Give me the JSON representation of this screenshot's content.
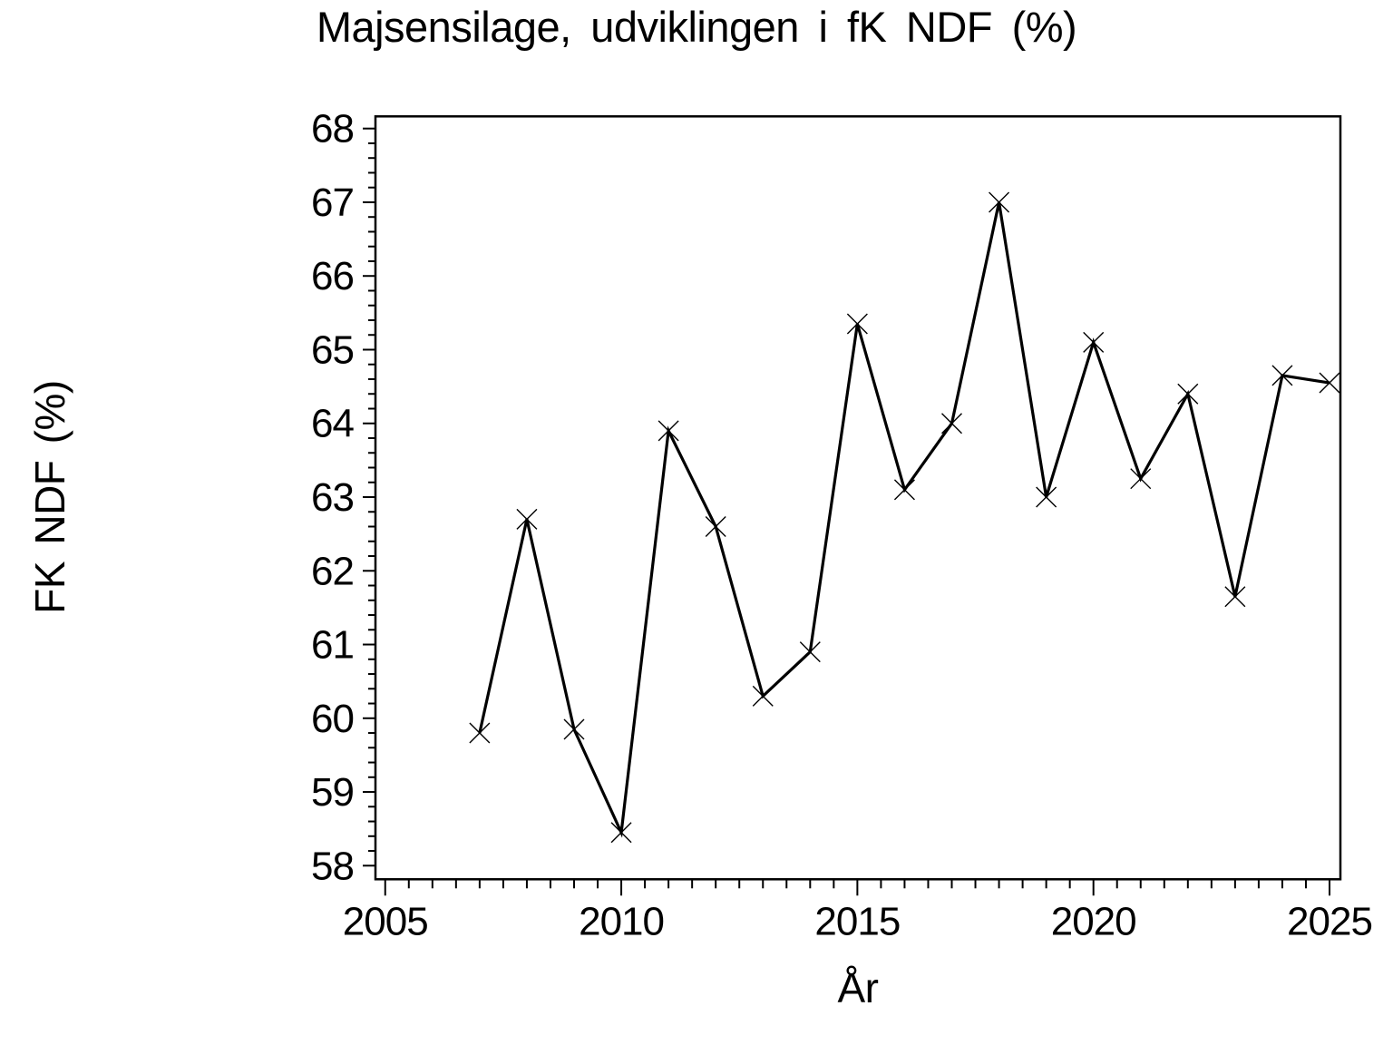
{
  "page": {
    "background_color": "#ffffff",
    "foreground_color": "#000000"
  },
  "chart_data": {
    "type": "line",
    "title": "Majsensilage, udviklingen i fK NDF (%)",
    "xlabel": "År",
    "ylabel": "FK NDF (%)",
    "x": [
      2007,
      2008,
      2009,
      2010,
      2011,
      2012,
      2013,
      2014,
      2015,
      2016,
      2017,
      2018,
      2019,
      2020,
      2021,
      2022,
      2023,
      2024,
      2025
    ],
    "values": [
      59.8,
      62.7,
      59.85,
      58.45,
      63.9,
      62.6,
      60.3,
      60.9,
      65.35,
      63.1,
      64.0,
      67.0,
      63.0,
      65.1,
      63.25,
      64.4,
      61.65,
      64.65,
      64.55
    ],
    "xlim": [
      2005,
      2025
    ],
    "ylim": [
      58,
      68
    ],
    "x_major_ticks": [
      2005,
      2010,
      2015,
      2020,
      2025
    ],
    "x_minor_step": 0.5,
    "y_major_ticks": [
      58,
      59,
      60,
      61,
      62,
      63,
      64,
      65,
      66,
      67,
      68
    ],
    "y_minor_step": 0.2,
    "marker": "x",
    "line_color": "#000000",
    "marker_color": "#000000",
    "grid": false,
    "legend": "none"
  }
}
